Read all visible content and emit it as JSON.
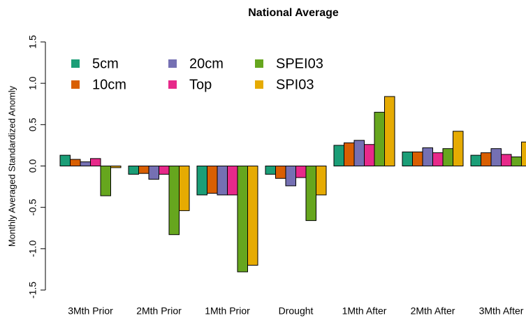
{
  "chart_data": {
    "type": "bar",
    "title": "National Average",
    "y_label": "Monthly Averaged Standardized Anomly",
    "categories": [
      "3Mth Prior",
      "2Mth Prior",
      "1Mth Prior",
      "Drought",
      "1Mth After",
      "2Mth After",
      "3Mth After"
    ],
    "series": [
      {
        "name": "5cm",
        "color": "#1b9e77",
        "values": [
          0.13,
          -0.1,
          -0.35,
          -0.1,
          0.25,
          0.17,
          0.13
        ]
      },
      {
        "name": "10cm",
        "color": "#d95f02",
        "values": [
          0.08,
          -0.09,
          -0.33,
          -0.15,
          0.28,
          0.17,
          0.16
        ]
      },
      {
        "name": "20cm",
        "color": "#7570b3",
        "values": [
          0.05,
          -0.16,
          -0.35,
          -0.24,
          0.31,
          0.22,
          0.21
        ]
      },
      {
        "name": "Top",
        "color": "#e7298a",
        "values": [
          0.09,
          -0.1,
          -0.35,
          -0.14,
          0.26,
          0.16,
          0.14
        ]
      },
      {
        "name": "SPEI03",
        "color": "#66a61e",
        "values": [
          -0.36,
          -0.83,
          -1.28,
          -0.66,
          0.65,
          0.21,
          0.11
        ]
      },
      {
        "name": "SPI03",
        "color": "#e6ab02",
        "values": [
          -0.02,
          -0.54,
          -1.2,
          -0.35,
          0.84,
          0.42,
          0.29
        ]
      }
    ],
    "ylim": [
      -1.5,
      1.5
    ],
    "yticks": [
      {
        "value": -1.5,
        "label": "-1.5"
      },
      {
        "value": -1.0,
        "label": "-1.0"
      },
      {
        "value": -0.5,
        "label": "-0.5"
      },
      {
        "value": 0,
        "label": "0.0"
      },
      {
        "value": 0.5,
        "label": "0.5"
      },
      {
        "value": 1.0,
        "label": "1.0"
      },
      {
        "value": 1.5,
        "label": "1.5"
      }
    ],
    "legend": "top-left"
  }
}
